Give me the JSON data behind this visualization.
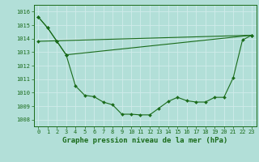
{
  "background_color": "#b2dfd8",
  "grid_color": "#c8e8e4",
  "line_color": "#1a6b1a",
  "title": "Graphe pression niveau de la mer (hPa)",
  "title_fontsize": 6.5,
  "ylim": [
    1007.5,
    1016.5
  ],
  "xlim": [
    -0.5,
    23.5
  ],
  "yticks": [
    1008,
    1009,
    1010,
    1011,
    1012,
    1013,
    1014,
    1015,
    1016
  ],
  "xticks": [
    0,
    1,
    2,
    3,
    4,
    5,
    6,
    7,
    8,
    9,
    10,
    11,
    12,
    13,
    14,
    15,
    16,
    17,
    18,
    19,
    20,
    21,
    22,
    23
  ],
  "tick_fontsize": 5.0,
  "series": [
    {
      "x": [
        0,
        1,
        2,
        3
      ],
      "y": [
        1015.6,
        1014.8,
        1013.8,
        1012.8
      ]
    },
    {
      "x": [
        0,
        1,
        2,
        3,
        4,
        5,
        6,
        7,
        8,
        9,
        10,
        11,
        12,
        13,
        14,
        15,
        16,
        17,
        18,
        19,
        20,
        21,
        22,
        23
      ],
      "y": [
        1015.6,
        1014.8,
        1013.8,
        1012.8,
        1010.5,
        1009.8,
        1009.7,
        1009.3,
        1009.1,
        1008.4,
        1008.4,
        1008.35,
        1008.35,
        1008.85,
        1009.35,
        1009.65,
        1009.4,
        1009.3,
        1009.3,
        1009.65,
        1009.65,
        1011.1,
        1013.9,
        1014.25
      ]
    },
    {
      "x": [
        0,
        23
      ],
      "y": [
        1013.8,
        1014.25
      ]
    },
    {
      "x": [
        3,
        23
      ],
      "y": [
        1012.8,
        1014.25
      ]
    }
  ]
}
